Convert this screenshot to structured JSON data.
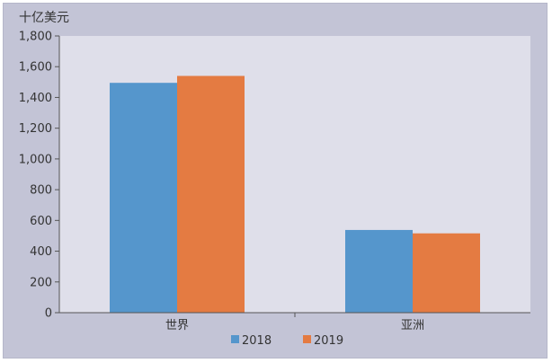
{
  "chart_data": {
    "type": "bar",
    "unit_label": "十亿美元",
    "categories": [
      "世界",
      "亚洲"
    ],
    "series": [
      {
        "name": "2018",
        "values": [
          1495,
          538
        ],
        "color": "#5596cc"
      },
      {
        "name": "2019",
        "values": [
          1540,
          516
        ],
        "color": "#e47b42"
      }
    ],
    "ylim": [
      0,
      1800
    ],
    "yticks": [
      0,
      200,
      400,
      600,
      800,
      1000,
      1200,
      1400,
      1600,
      1800
    ],
    "ytick_labels": [
      "0",
      "200",
      "400",
      "600",
      "800",
      "1,000",
      "1,200",
      "1,400",
      "1,600",
      "1,800"
    ],
    "grid": false,
    "legend_position": "bottom-center",
    "plot_background": "#dfdfea",
    "frame_background": "#c3c4d6"
  }
}
